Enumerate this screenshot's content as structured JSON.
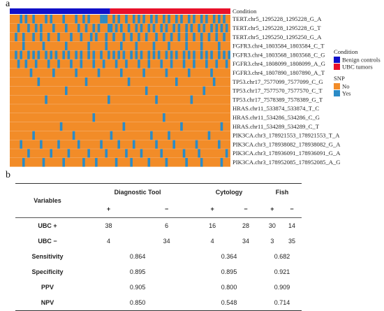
{
  "panel_a_label": "a",
  "panel_b_label": "b",
  "chart_data": [
    {
      "type": "heatmap",
      "panel": "a",
      "column_annotation_title": "Condition",
      "rows": [
        "TERT.chr5_1295228_1295228_G_A",
        "TERT.chr5_1295228_1295228_G_T",
        "TERT.chr5_1295250_1295250_G_A",
        "FGFR3.chr4_1803584_1803584_C_T",
        "FGFR3.chr4_1803568_1803568_C_G",
        "FGFR3.chr4_1808099_1808099_A_G",
        "FGFR3.chr4_1807890_1807890_A_T",
        "TP53.chr17_7577099_7577099_C_G",
        "TP53.chr17_7577570_7577570_C_T",
        "TP53.chr17_7578389_7578389_G_T",
        "HRAS.chr11_533874_533874_T_C",
        "HRAS.chr11_534286_534286_C_G",
        "HRAS.chr11_534289_534289_C_T",
        "PIK3CA.chr3_178921553_178921553_T_A",
        "PIK3CA.chr3_178938082_178938082_G_A",
        "PIK3CA.chr3_178936091_178936091_G_A",
        "PIK3CA.chr3_178952085_178952085_A_G"
      ],
      "n_columns": 88,
      "condition_groups": [
        {
          "name": "Benign controls",
          "count": 40,
          "color": "#1010c8"
        },
        {
          "name": "UBC tumors",
          "count": 48,
          "color": "#e8102a"
        }
      ],
      "legend_condition_title": "Condition",
      "legend_snp_title": "SNP",
      "snp_levels": [
        {
          "name": "No",
          "color": "#f28c28"
        },
        {
          "name": "Yes",
          "color": "#2b8bc6"
        }
      ],
      "yes_cells": [
        [
          4,
          6,
          9,
          14,
          16,
          21,
          26,
          29,
          31,
          36,
          37,
          38,
          41,
          43,
          46,
          49,
          51,
          53,
          56,
          58,
          61,
          63,
          66,
          68,
          71,
          73,
          76,
          78,
          81,
          83,
          85
        ],
        [
          3,
          7,
          10,
          12,
          17,
          22,
          27,
          30,
          33,
          35,
          39,
          40,
          42,
          44,
          47,
          50,
          52,
          55,
          57,
          60,
          62,
          65,
          67,
          70,
          72,
          75,
          77,
          80,
          82,
          84,
          86
        ],
        [
          2,
          5,
          9,
          12,
          15,
          19,
          24,
          28,
          32,
          34,
          38,
          41,
          45,
          48,
          51,
          54,
          58,
          61,
          64,
          67,
          70,
          73,
          76,
          79,
          82,
          85
        ],
        [
          5,
          13,
          22,
          31,
          38,
          44,
          50,
          57,
          63,
          70,
          76,
          83
        ],
        [
          2,
          4,
          7,
          9,
          11,
          14,
          16,
          18,
          21,
          23,
          26,
          28,
          31,
          33,
          36,
          39,
          41,
          43,
          45,
          48,
          50,
          52,
          55,
          57,
          59,
          62,
          64,
          66,
          69,
          71,
          73,
          76,
          78,
          80,
          83,
          85,
          87
        ],
        [
          3,
          6,
          10,
          15,
          19,
          24,
          28,
          33,
          37,
          42,
          46,
          51,
          55,
          60,
          64,
          69,
          73,
          78,
          82,
          86
        ],
        [
          8,
          17,
          26,
          35,
          44,
          53,
          62,
          71,
          80
        ],
        [
          11,
          30,
          47,
          66,
          81
        ],
        [
          22,
          54,
          77
        ],
        [
          14,
          39,
          58,
          72
        ],
        [],
        [
          33,
          61
        ],
        [
          20,
          45,
          68,
          84
        ],
        [
          9,
          25,
          40,
          56,
          63,
          79
        ],
        [
          4,
          12,
          19,
          27,
          36,
          43,
          49,
          58,
          65,
          74,
          83
        ],
        [
          7,
          16,
          23,
          31,
          38,
          46,
          52,
          60,
          69,
          75,
          86
        ],
        [
          5,
          13,
          21,
          29,
          34,
          42,
          48,
          55,
          62,
          70,
          76,
          84
        ]
      ]
    },
    {
      "type": "table",
      "panel": "b",
      "header_variables": "Variables",
      "groups": [
        "Diagnostic Tool",
        "Cytology",
        "Fish"
      ],
      "sub_headers": [
        "+",
        "−",
        "+",
        "−",
        "+",
        "−"
      ],
      "count_rows": [
        {
          "label": "UBC +",
          "values": [
            "38",
            "6",
            "16",
            "28",
            "30",
            "14"
          ]
        },
        {
          "label": "UBC −",
          "values": [
            "4",
            "34",
            "4",
            "34",
            "3",
            "35"
          ]
        }
      ],
      "metric_rows": [
        {
          "label": "Sensitivity",
          "values": [
            "0.864",
            "0.364",
            "0.682"
          ]
        },
        {
          "label": "Specificity",
          "values": [
            "0.895",
            "0.895",
            "0.921"
          ]
        },
        {
          "label": "PPV",
          "values": [
            "0.905",
            "0.800",
            "0.909"
          ]
        },
        {
          "label": "NPV",
          "values": [
            "0.850",
            "0.548",
            "0.714"
          ]
        }
      ]
    }
  ]
}
